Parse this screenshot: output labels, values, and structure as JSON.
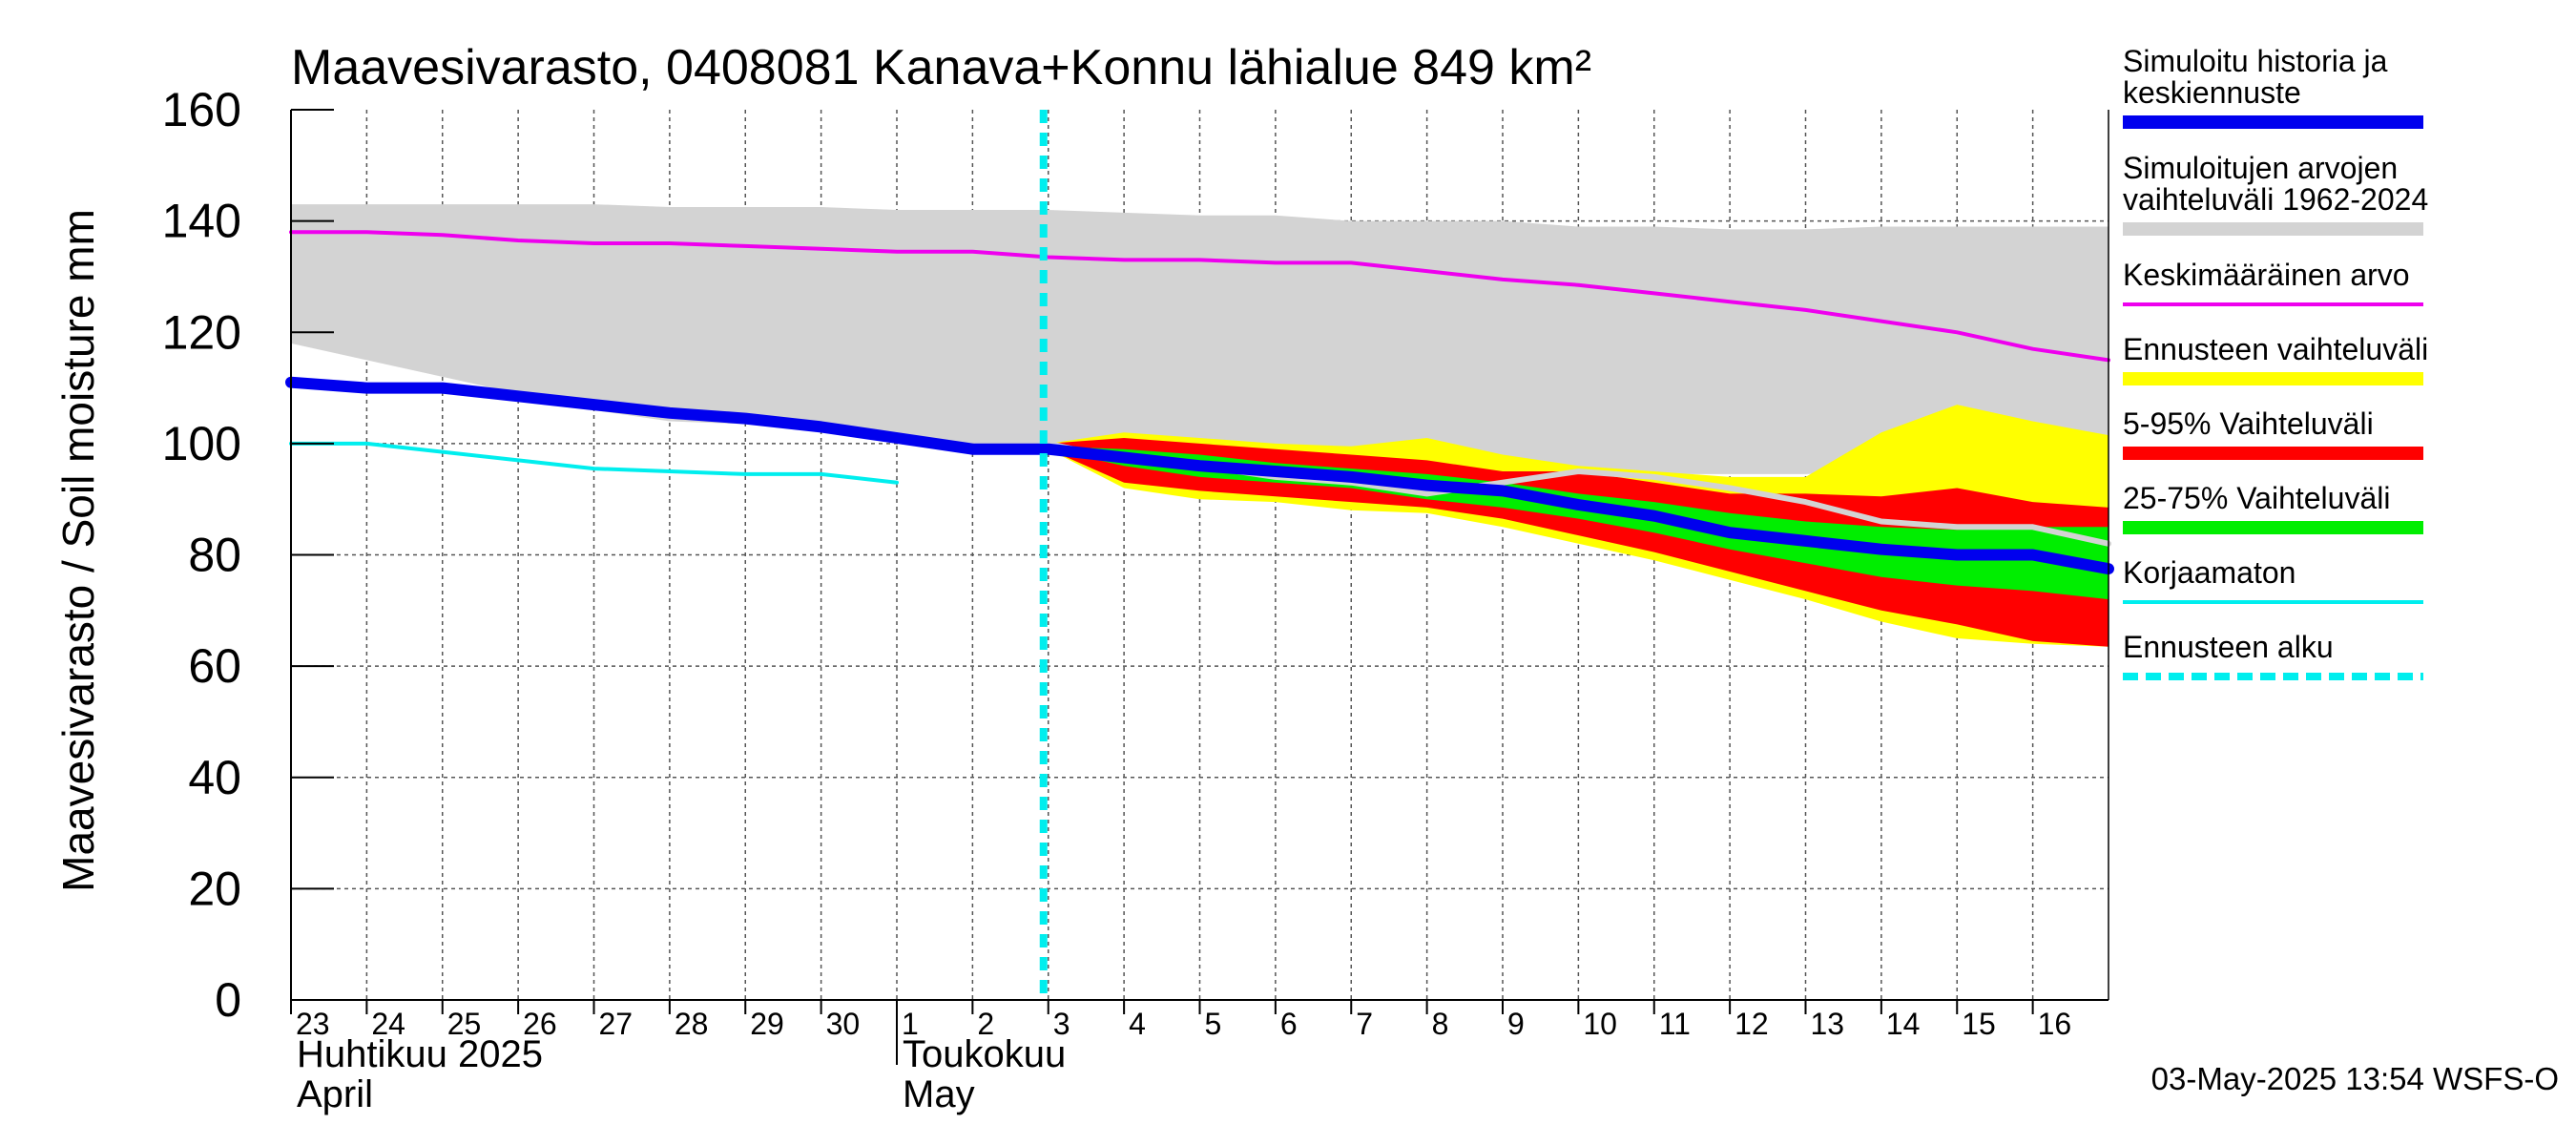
{
  "chart_data": {
    "type": "area",
    "title": "Maavesivarasto, 0408081 Kanava+Konnu lähialue 849 km²",
    "ylabel": "Maavesivarasto / Soil moisture   mm",
    "ylim": [
      0,
      160
    ],
    "yticks": [
      "0",
      "20",
      "40",
      "60",
      "80",
      "100",
      "120",
      "140",
      "160"
    ],
    "x": [
      23,
      24,
      25,
      26,
      27,
      28,
      29,
      30,
      31,
      32,
      33,
      34,
      35,
      36,
      37,
      38,
      39,
      40,
      41,
      42,
      43,
      44,
      45,
      46,
      47
    ],
    "xlim": [
      23,
      47
    ],
    "day_ticks": [
      {
        "x": 23,
        "label": "23"
      },
      {
        "x": 24,
        "label": "24"
      },
      {
        "x": 25,
        "label": "25"
      },
      {
        "x": 26,
        "label": "26"
      },
      {
        "x": 27,
        "label": "27"
      },
      {
        "x": 28,
        "label": "28"
      },
      {
        "x": 29,
        "label": "29"
      },
      {
        "x": 30,
        "label": "30"
      },
      {
        "x": 31,
        "label": "1"
      },
      {
        "x": 32,
        "label": "2"
      },
      {
        "x": 33,
        "label": "3"
      },
      {
        "x": 34,
        "label": "4"
      },
      {
        "x": 35,
        "label": "5"
      },
      {
        "x": 36,
        "label": "6"
      },
      {
        "x": 37,
        "label": "7"
      },
      {
        "x": 38,
        "label": "8"
      },
      {
        "x": 39,
        "label": "9"
      },
      {
        "x": 40,
        "label": "10"
      },
      {
        "x": 41,
        "label": "11"
      },
      {
        "x": 42,
        "label": "12"
      },
      {
        "x": 43,
        "label": "13"
      },
      {
        "x": 44,
        "label": "14"
      },
      {
        "x": 45,
        "label": "15"
      },
      {
        "x": 46,
        "label": "16"
      }
    ],
    "months": [
      {
        "x": 23,
        "line1": "Huhtikuu  2025",
        "line2": "April"
      },
      {
        "x": 31,
        "line1": "Toukokuu",
        "line2": "May"
      }
    ],
    "forecast_start_x": 33,
    "series": [
      {
        "name": "Simuloitujen arvojen vaihteluväli 1962-2024",
        "kind": "band",
        "color": "#d3d3d3",
        "x": [
          23,
          24,
          25,
          26,
          27,
          28,
          29,
          30,
          31,
          32,
          33,
          34,
          35,
          36,
          37,
          38,
          39,
          40,
          41,
          42,
          43,
          44,
          45,
          46,
          47
        ],
        "upper": [
          143,
          143,
          143,
          143,
          143,
          142.5,
          142.5,
          142.5,
          142,
          142,
          142,
          141.5,
          141,
          141,
          140,
          140,
          140,
          139,
          139,
          138.5,
          138.5,
          139,
          139,
          139,
          139
        ],
        "lower": [
          118,
          115,
          112,
          109,
          106,
          104,
          103.5,
          103,
          101,
          100,
          99.5,
          99,
          98,
          97,
          96,
          95,
          95,
          94.5,
          94.5,
          94.5,
          94.5,
          95,
          95,
          96,
          96
        ]
      },
      {
        "name": "Ennusteen vaihteluväli",
        "kind": "band",
        "color": "#ffff00",
        "x": [
          33,
          34,
          35,
          36,
          37,
          38,
          39,
          40,
          41,
          42,
          43,
          44,
          45,
          46,
          47
        ],
        "upper": [
          100,
          102,
          101,
          100,
          99.5,
          101,
          98,
          96,
          95,
          94,
          94,
          102,
          107,
          104,
          101.5
        ],
        "lower": [
          99,
          92,
          90,
          89.5,
          88,
          87.5,
          85,
          82,
          79,
          75.5,
          72,
          68,
          65,
          64,
          63.5
        ]
      },
      {
        "name": "5-95% Vaihteluväli",
        "kind": "band",
        "color": "#ff0000",
        "x": [
          33,
          34,
          35,
          36,
          37,
          38,
          39,
          40,
          41,
          42,
          43,
          44,
          45,
          46,
          47
        ],
        "upper": [
          100,
          101,
          100,
          99,
          98,
          97,
          95,
          95,
          93,
          91,
          91,
          90.5,
          92,
          89.5,
          88.5
        ],
        "lower": [
          99,
          93,
          91.5,
          90.5,
          89.5,
          88.5,
          86.5,
          83.5,
          80.5,
          77,
          73.5,
          70,
          67.5,
          64.5,
          63.5
        ]
      },
      {
        "name": "25-75% Vaihteluväli",
        "kind": "band",
        "color": "#00ee00",
        "x": [
          33,
          34,
          35,
          36,
          37,
          38,
          39,
          40,
          41,
          42,
          43,
          44,
          45,
          46,
          47
        ],
        "upper": [
          99.5,
          99,
          98,
          96.5,
          95.5,
          94.5,
          93,
          91,
          89.5,
          87.5,
          86,
          85,
          84.5,
          85,
          85
        ],
        "lower": [
          99,
          96,
          94,
          93,
          92,
          90,
          88.5,
          86.5,
          84,
          81,
          78.5,
          76,
          74.5,
          73.5,
          72
        ]
      },
      {
        "name": "Keskimääräinen arvo",
        "kind": "line",
        "color": "#ee00ee",
        "width": 4,
        "x": [
          23,
          24,
          25,
          26,
          27,
          28,
          29,
          30,
          31,
          32,
          33,
          34,
          35,
          36,
          37,
          38,
          39,
          40,
          41,
          42,
          43,
          44,
          45,
          46,
          47
        ],
        "y": [
          138,
          138,
          137.5,
          136.5,
          136,
          136,
          135.5,
          135,
          134.5,
          134.5,
          133.5,
          133,
          133,
          132.5,
          132.5,
          131,
          129.5,
          128.5,
          127,
          125.5,
          124,
          122,
          120,
          117,
          115
        ]
      },
      {
        "name": "Korjaamaton",
        "kind": "line",
        "color": "#00eeee",
        "width": 4,
        "x": [
          23,
          24,
          25,
          26,
          27,
          28,
          29,
          30,
          31
        ],
        "y": [
          100,
          100,
          98.5,
          97,
          95.5,
          95,
          94.5,
          94.5,
          93
        ]
      },
      {
        "name": "Median forecast",
        "kind": "line",
        "color": "#d3d3d3",
        "width": 6,
        "legend": false,
        "x": [
          33,
          34,
          35,
          36,
          37,
          38,
          39,
          40,
          41,
          42,
          43,
          44,
          45,
          46,
          47
        ],
        "y": [
          100,
          97,
          96,
          94,
          93,
          91,
          93,
          95,
          94,
          92,
          89.5,
          86,
          85,
          85,
          82
        ]
      },
      {
        "name": "Simuloitu historia ja keskiennuste",
        "kind": "line",
        "color": "#0000ee",
        "width": 12,
        "x": [
          23,
          24,
          25,
          26,
          27,
          28,
          29,
          30,
          31,
          32,
          33,
          34,
          35,
          36,
          37,
          38,
          39,
          40,
          41,
          42,
          43,
          44,
          45,
          46,
          47
        ],
        "y": [
          111,
          110,
          110,
          108.5,
          107,
          105.5,
          104.5,
          103,
          101,
          99,
          99,
          97.5,
          96,
          95,
          94,
          92.5,
          91.5,
          89,
          87,
          84,
          82.5,
          81,
          80,
          80,
          77.5
        ]
      }
    ],
    "legend": [
      {
        "lines": [
          "Simuloitu historia ja",
          "keskiennuste"
        ],
        "color": "#0000ee",
        "style": "thick"
      },
      {
        "lines": [
          "Simuloitujen arvojen",
          "vaihteluväli 1962-2024"
        ],
        "color": "#d3d3d3",
        "style": "thick"
      },
      {
        "lines": [
          "Keskimääräinen arvo"
        ],
        "color": "#ee00ee",
        "style": "thin"
      },
      {
        "lines": [
          "Ennusteen vaihteluväli"
        ],
        "color": "#ffff00",
        "style": "thick"
      },
      {
        "lines": [
          "5-95% Vaihteluväli"
        ],
        "color": "#ff0000",
        "style": "thick"
      },
      {
        "lines": [
          "25-75% Vaihteluväli"
        ],
        "color": "#00ee00",
        "style": "thick"
      },
      {
        "lines": [
          "Korjaamaton"
        ],
        "color": "#00eeee",
        "style": "thin"
      },
      {
        "lines": [
          "Ennusteen alku"
        ],
        "color": "#00eeee",
        "style": "dashed"
      }
    ],
    "footer": "03-May-2025 13:54 WSFS-O"
  }
}
